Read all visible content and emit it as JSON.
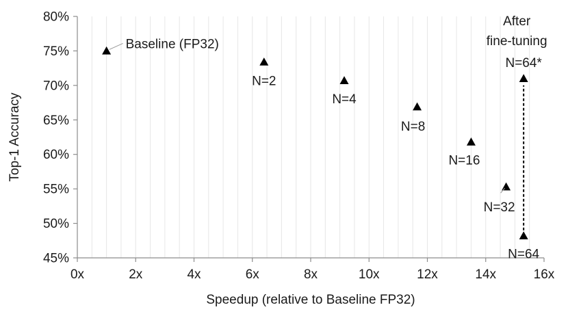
{
  "chart_data": {
    "type": "scatter",
    "title": "",
    "xlabel": "Speedup (relative to Baseline FP32)",
    "ylabel": "Top-1 Accuracy",
    "xlim": [
      0,
      16
    ],
    "ylim": [
      45,
      80
    ],
    "x_ticks": [
      0,
      2,
      4,
      6,
      8,
      10,
      12,
      14,
      16
    ],
    "x_tick_labels": [
      "0x",
      "2x",
      "4x",
      "6x",
      "8x",
      "10x",
      "12x",
      "14x",
      "16x"
    ],
    "y_ticks": [
      45,
      50,
      55,
      60,
      65,
      70,
      75,
      80
    ],
    "y_tick_labels": [
      "45%",
      "50%",
      "55%",
      "60%",
      "65%",
      "70%",
      "75%",
      "80%"
    ],
    "grid": "vertical minor gridlines",
    "marker": "triangle",
    "marker_color": "#000000",
    "points": [
      {
        "x": 1.0,
        "y": 75.0,
        "label": "Baseline (FP32)"
      },
      {
        "x": 6.4,
        "y": 73.4,
        "label": "N=2"
      },
      {
        "x": 9.15,
        "y": 70.7,
        "label": "N=4"
      },
      {
        "x": 11.65,
        "y": 66.9,
        "label": "N=8"
      },
      {
        "x": 13.5,
        "y": 61.8,
        "label": "N=16"
      },
      {
        "x": 14.7,
        "y": 55.3,
        "label": "N=32"
      },
      {
        "x": 15.3,
        "y": 48.2,
        "label": "N=64"
      },
      {
        "x": 15.3,
        "y": 71.0,
        "label": "N=64*"
      }
    ],
    "annotation": {
      "lines": [
        "After",
        "fine-tuning"
      ],
      "arrow_from": {
        "x": 15.3,
        "y": 48.2
      },
      "arrow_to": {
        "x": 15.3,
        "y": 71.0
      },
      "style": "dashed"
    }
  }
}
